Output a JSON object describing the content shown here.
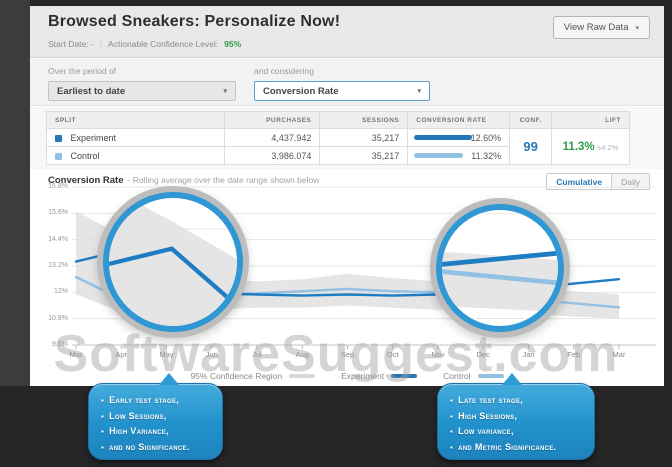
{
  "header": {
    "title": "Browsed Sneakers: Personalize Now!",
    "start_date": "Start Date: -",
    "separator": "|",
    "confidence_label": "Actionable Confidence Level:",
    "confidence_value": "95%",
    "view_raw_data": "View Raw Data",
    "chevron": "▾"
  },
  "filters": {
    "period_label": "Over the period of",
    "period_value": "Earliest to date",
    "metric_label": "and considering",
    "metric_value": "Conversion Rate",
    "chevron": "▾"
  },
  "table": {
    "columns": [
      "Split",
      "Purchases",
      "Sessions",
      "Conversion Rate",
      "Conf.",
      "Lift"
    ],
    "rows": [
      {
        "split": "Experiment",
        "purchases": "4,437.942",
        "sessions": "35,217",
        "conversion_rate": "12.60%",
        "bar_pct": 100,
        "color": "#2678b8"
      },
      {
        "split": "Control",
        "purchases": "3,986.074",
        "sessions": "35,217",
        "conversion_rate": "11.32%",
        "bar_pct": 84,
        "color": "#93c1e4"
      }
    ],
    "confidence": "99",
    "lift": "11.3%",
    "lift_margin": "±4.2%"
  },
  "chart": {
    "title": "Conversion Rate",
    "subtitle": "- Rolling average over the date range shown below",
    "toggles": [
      "Cumulative",
      "Daily"
    ]
  },
  "chart_data": {
    "type": "line",
    "title": "Conversion Rate - Rolling average over the date range shown below",
    "x": [
      "Mar",
      "Apr",
      "May",
      "Jun",
      "Jul",
      "Aug",
      "Sep",
      "Oct",
      "Nov",
      "Dec",
      "Jan",
      "Feb",
      "Mar"
    ],
    "yticks": [
      "16.8%",
      "15.6%",
      "14.4%",
      "13.2%",
      "12%",
      "10.8%",
      "9.6%"
    ],
    "ylim": [
      9.6,
      16.8
    ],
    "grid": true,
    "legend_position": "bottom",
    "series": [
      {
        "name": "Experiment",
        "color": "#1e7dc2",
        "values": [
          13.4,
          13.9,
          12.1,
          11.95,
          11.9,
          11.85,
          11.9,
          11.85,
          11.9,
          12.0,
          12.2,
          12.4,
          12.6
        ]
      },
      {
        "name": "Control",
        "color": "#93c1e4",
        "values": [
          12.7,
          11.7,
          10.8,
          11.9,
          11.95,
          12.05,
          12.15,
          12.05,
          12.0,
          11.9,
          11.7,
          11.5,
          11.32
        ]
      }
    ],
    "band": {
      "name": "95% Confidence Region",
      "color": "#dcdcdc",
      "upper": [
        15.7,
        14.6,
        13.4,
        12.6,
        12.5,
        12.6,
        12.85,
        12.65,
        12.5,
        12.35,
        12.2,
        12.05,
        11.9
      ],
      "lower": [
        11.9,
        11.1,
        10.9,
        11.2,
        11.3,
        11.3,
        11.4,
        11.3,
        11.2,
        11.1,
        11.0,
        10.9,
        10.8
      ]
    }
  },
  "legend": [
    {
      "label": "95% Confidence Region",
      "color": "#d8d8d8"
    },
    {
      "label": "Experiment",
      "color": "#2678b8"
    },
    {
      "label": "Control",
      "color": "#93c1e4"
    }
  ],
  "callouts": {
    "left": [
      "Early test stage,",
      "Low Sessions,",
      "High Variance,",
      "and no Significance."
    ],
    "right": [
      "Late test stage,",
      "High Sessions,",
      "Low variance,",
      "and Metric Significance."
    ]
  },
  "watermark": "SoftwareSuggest.com"
}
